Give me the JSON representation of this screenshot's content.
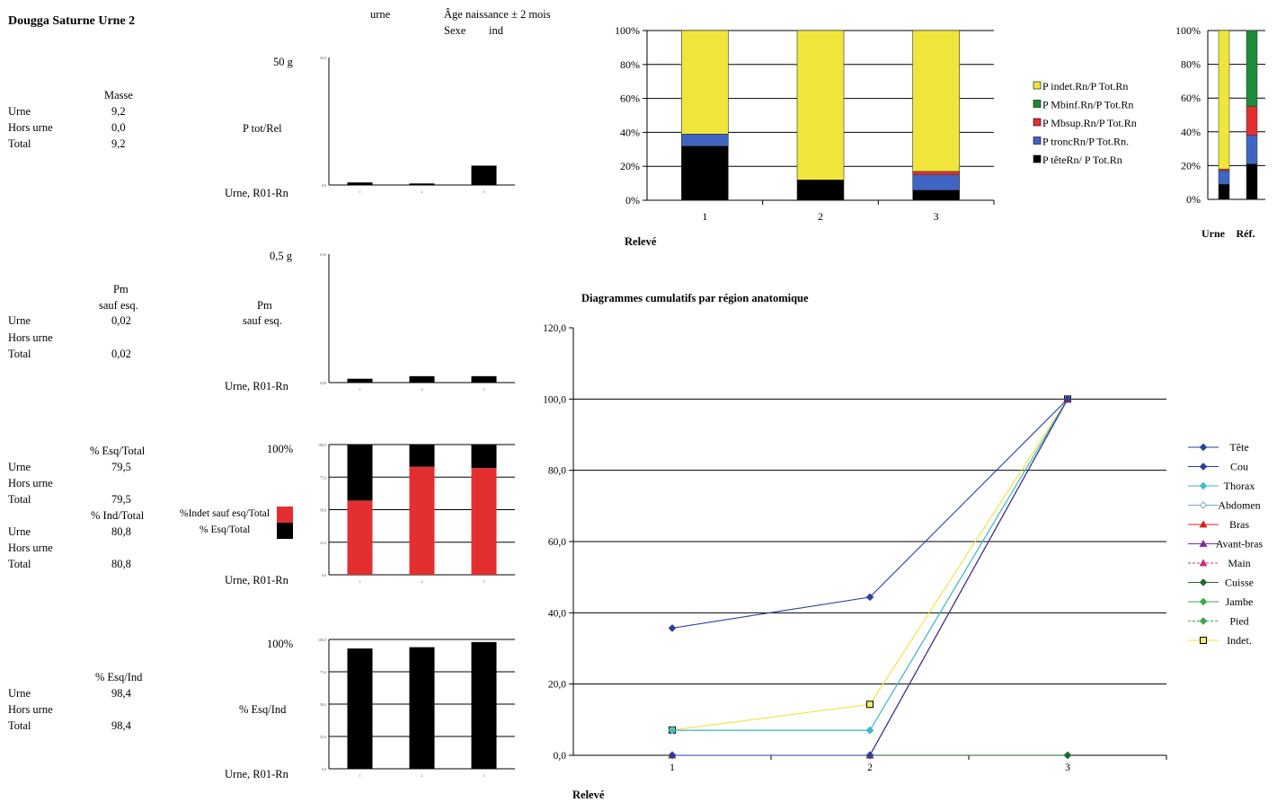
{
  "title": "Dougga Saturne Urne 2",
  "header": {
    "col1": "urne",
    "age": "Âge naissance ± 2 mois",
    "sexe_label": "Sexe",
    "sexe_value": "ind"
  },
  "tables": {
    "masse": {
      "heading": "Masse",
      "rows": [
        {
          "label": "Urne",
          "value": "9,2"
        },
        {
          "label": "Hors urne",
          "value": "0,0"
        },
        {
          "label": "Total",
          "value": "9,2"
        }
      ]
    },
    "pm": {
      "heading_line1": "Pm",
      "heading_line2": "sauf esq.",
      "rows": [
        {
          "label": "Urne",
          "value": "0,02"
        },
        {
          "label": "Hors urne",
          "value": ""
        },
        {
          "label": "Total",
          "value": "0,02"
        }
      ]
    },
    "esq_total": {
      "heading": "% Esq/Total",
      "rows": [
        {
          "label": "Urne",
          "value": "79,5"
        },
        {
          "label": "Hors urne",
          "value": ""
        },
        {
          "label": "Total",
          "value": "79,5"
        }
      ]
    },
    "ind_total": {
      "heading": "% Ind/Total",
      "rows": [
        {
          "label": "Urne",
          "value": "80,8"
        },
        {
          "label": "Hors urne",
          "value": ""
        },
        {
          "label": "Total",
          "value": "80,8"
        }
      ]
    },
    "esq_ind": {
      "heading": "% Esq/Ind",
      "rows": [
        {
          "label": "Urne",
          "value": "98,4"
        },
        {
          "label": "Hors urne",
          "value": ""
        },
        {
          "label": "Total",
          "value": "98,4"
        }
      ]
    }
  },
  "chart_data": [
    {
      "id": "masse",
      "type": "bar",
      "max_label": "50 g",
      "ylabel": "P tot/Rel",
      "xlabel": "Urne, R01-Rn",
      "ytick_labels": [
        "50,0",
        "0,0"
      ],
      "ylim": [
        0,
        50
      ],
      "categories": [
        "1",
        "2",
        "3"
      ],
      "values": [
        1.0,
        0.6,
        7.6
      ],
      "colors": {
        "bar": "#000000"
      }
    },
    {
      "id": "pm",
      "type": "bar",
      "max_label": "0,5 g",
      "ylabel_line1": "Pm",
      "ylabel_line2": "sauf esq.",
      "xlabel": "Urne, R01-Rn",
      "ytick_labels": [
        "0,50",
        "0,00"
      ],
      "ylim": [
        0,
        0.5
      ],
      "categories": [
        "1",
        "2",
        "3"
      ],
      "values": [
        0.015,
        0.025,
        0.025
      ],
      "colors": {
        "bar": "#000000"
      }
    },
    {
      "id": "esq_indet",
      "type": "bar",
      "stacked": true,
      "max_label": "100%",
      "xlabel": "Urne, R01-Rn",
      "legend": [
        {
          "name": "%Indet sauf esq/Total",
          "color": "#e32f2f"
        },
        {
          "name": "% Esq/Total",
          "color": "#000000"
        }
      ],
      "ytick_labels": [
        "100,0",
        "75,0",
        "50,0",
        "25,0",
        "0,0"
      ],
      "ylim": [
        0,
        100
      ],
      "categories": [
        "1",
        "2",
        "3"
      ],
      "series": [
        {
          "values": [
            57,
            83,
            82
          ]
        },
        {
          "values": [
            43,
            17,
            18
          ]
        }
      ]
    },
    {
      "id": "esq_ind",
      "type": "bar",
      "max_label": "100%",
      "ylabel": "% Esq/Ind",
      "xlabel": "Urne, R01-Rn",
      "ytick_labels": [
        "100,0",
        "75,0",
        "50,0",
        "25,0",
        "0,0"
      ],
      "ylim": [
        0,
        100
      ],
      "categories": [
        "1",
        "2",
        "3"
      ],
      "values": [
        93,
        94,
        98
      ],
      "colors": {
        "bar": "#000000"
      }
    },
    {
      "id": "regions_stacked",
      "type": "bar",
      "stacked": true,
      "xlabel": "Relevé",
      "ytick_labels": [
        "100%",
        "80%",
        "60%",
        "40%",
        "20%",
        "0%"
      ],
      "ylim": [
        0,
        100
      ],
      "grid": true,
      "legend_position": "right",
      "categories": [
        "1",
        "2",
        "3"
      ],
      "series": [
        {
          "name": "P têteRn/ P Tot.Rn",
          "color": "#000000",
          "values": [
            32,
            12,
            6
          ]
        },
        {
          "name": "P troncRn/P Tot.Rn.",
          "color": "#3f66c4",
          "values": [
            7,
            0,
            9
          ]
        },
        {
          "name": "P Mbsup.Rn/P Tot.Rn",
          "color": "#e32f2f",
          "values": [
            0,
            0,
            2
          ]
        },
        {
          "name": "P Mbinf.Rn/P Tot.Rn",
          "color": "#1f8a3b",
          "values": [
            0,
            0,
            0
          ]
        },
        {
          "name": "P indet.Rn/P Tot.Rn",
          "color": "#f0e63b",
          "values": [
            61,
            88,
            83
          ]
        }
      ]
    },
    {
      "id": "urne_ref",
      "type": "bar",
      "stacked": true,
      "ytick_labels": [
        "100%",
        "80%",
        "60%",
        "40%",
        "20%",
        "0%"
      ],
      "ylim": [
        0,
        100
      ],
      "categories": [
        "Urne",
        "Réf."
      ],
      "series": [
        {
          "color": "#000000",
          "values": [
            9,
            21
          ]
        },
        {
          "color": "#3f66c4",
          "values": [
            8,
            17
          ]
        },
        {
          "color": "#e32f2f",
          "values": [
            1,
            17
          ]
        },
        {
          "color": "#1f8a3b",
          "values": [
            0,
            45
          ]
        },
        {
          "color": "#f0e63b",
          "values": [
            82,
            0
          ]
        }
      ]
    },
    {
      "id": "cumulatif",
      "type": "line",
      "title": "Diagrammes cumulatifs par région anatomique",
      "xlabel": "Relevé",
      "ytick_labels": [
        "120,0",
        "100,0",
        "80,0",
        "60,0",
        "40,0",
        "20,0",
        "0,0"
      ],
      "ylim": [
        0,
        120
      ],
      "grid": true,
      "legend_position": "right",
      "x": [
        "1",
        "2",
        "3"
      ],
      "series": [
        {
          "name": "Tête",
          "color": "#2b3f9e",
          "marker": "diamond",
          "values": [
            35.7,
            44.4,
            100
          ]
        },
        {
          "name": "Cou",
          "color": "#2b3f9e",
          "marker": "diamond",
          "values": [
            0,
            0,
            100
          ]
        },
        {
          "name": "Thorax",
          "color": "#3cbcc9",
          "marker": "diamond",
          "values": [
            7,
            7,
            100
          ]
        },
        {
          "name": "Abdomen",
          "color": "#6fa8d8",
          "marker": "diamond-open",
          "values": [
            7,
            7,
            100
          ]
        },
        {
          "name": "Bras",
          "color": "#d62020",
          "marker": "triangle",
          "values": [
            0,
            0,
            100
          ]
        },
        {
          "name": "Avant-bras",
          "color": "#7a2f9e",
          "marker": "triangle",
          "values": [
            0,
            0,
            100
          ]
        },
        {
          "name": "Main",
          "color": "#c0307a",
          "marker": "triangle",
          "dashed": true,
          "values": [
            0,
            0,
            100
          ]
        },
        {
          "name": "Cuisse",
          "color": "#1d6a2e",
          "marker": "diamond",
          "values": [
            0,
            0,
            0
          ]
        },
        {
          "name": "Jambe",
          "color": "#3aa84a",
          "marker": "diamond",
          "values": [
            0,
            0,
            0
          ]
        },
        {
          "name": "Pied",
          "color": "#3aa84a",
          "marker": "diamond",
          "dashed": true,
          "values": [
            0,
            0,
            0
          ]
        },
        {
          "name": "Indet.",
          "color": "#f2e23a",
          "marker": "square",
          "values": [
            7.1,
            14.3,
            100
          ]
        }
      ]
    }
  ]
}
